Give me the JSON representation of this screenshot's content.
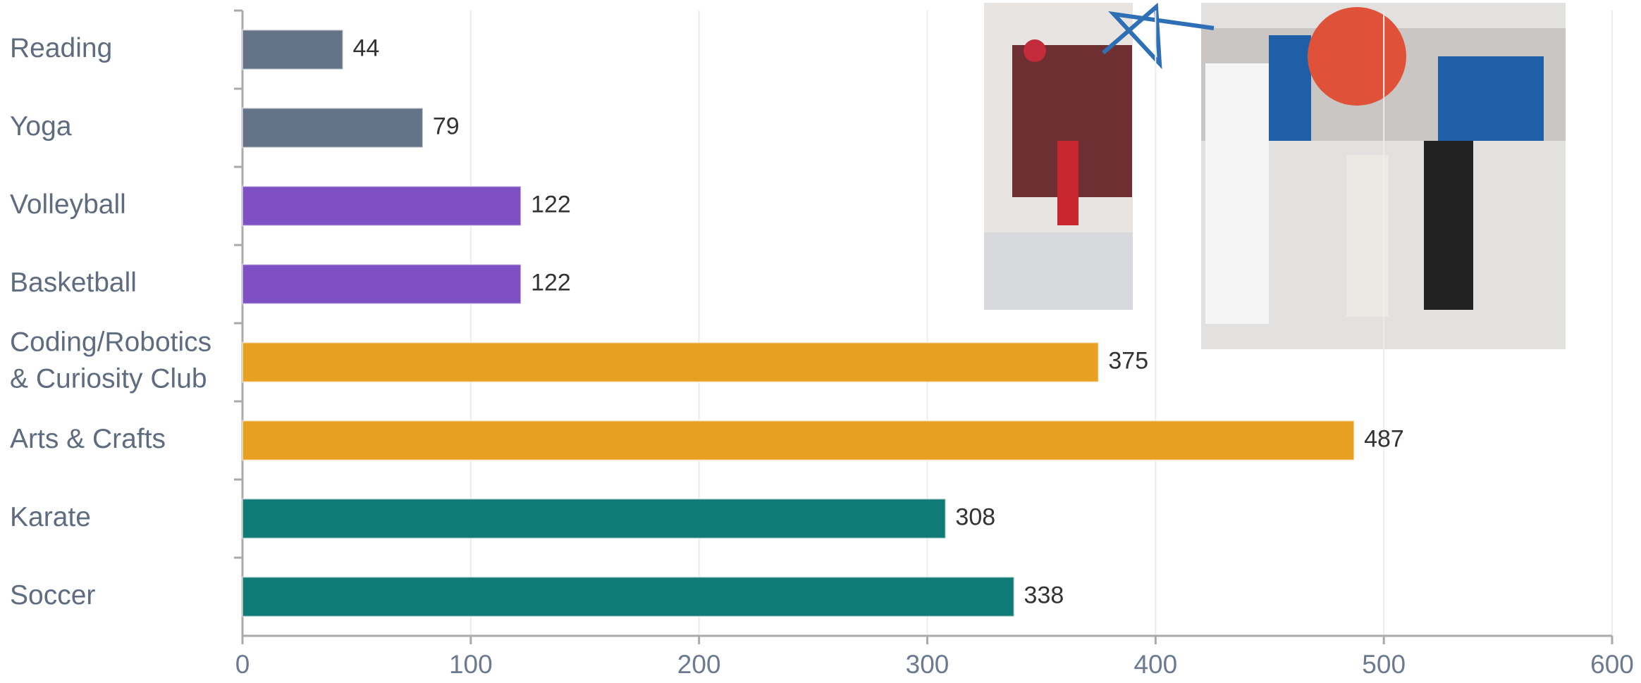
{
  "chart_data": {
    "type": "bar",
    "orientation": "horizontal",
    "categories": [
      "Reading",
      "Yoga",
      "Volleyball",
      "Basketball",
      "Coding/Robotics\n& Curiosity Club",
      "Arts & Crafts",
      "Karate",
      "Soccer"
    ],
    "values": [
      44,
      79,
      122,
      122,
      375,
      487,
      308,
      338
    ],
    "colors": [
      "#657388",
      "#657388",
      "#7e50c4",
      "#7e50c4",
      "#e8a023",
      "#e8a023",
      "#0f7a76",
      "#0f7a76"
    ],
    "xlim": [
      0,
      600
    ],
    "xticks": [
      0,
      100,
      200,
      300,
      400,
      500,
      600
    ],
    "grid": true
  }
}
